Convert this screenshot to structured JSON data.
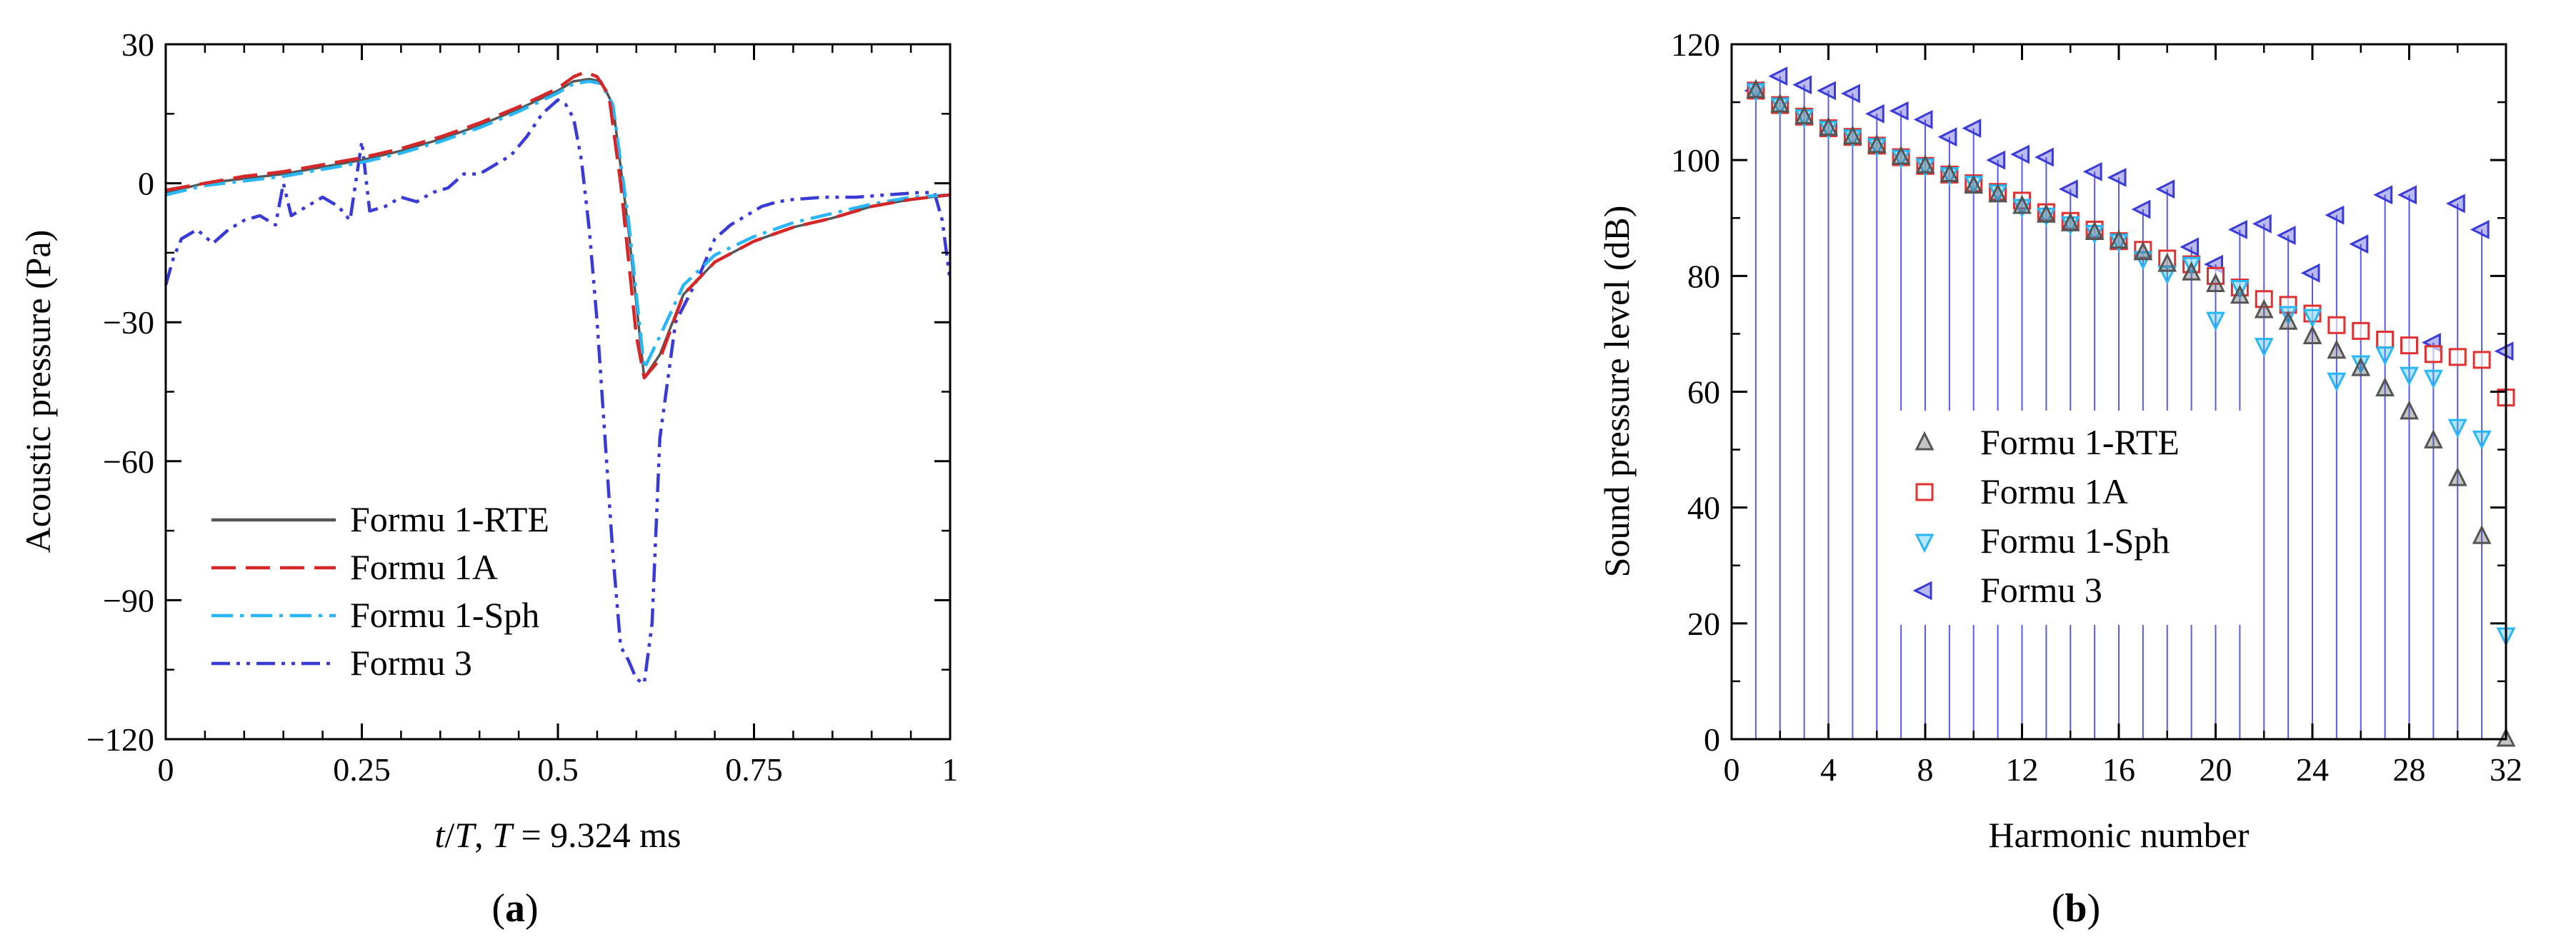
{
  "chart_data": [
    {
      "type": "line",
      "panel_label": {
        "open": "(",
        "letter": "a",
        "close": ")"
      },
      "xlabel": {
        "t": "t",
        "mid": "/",
        "T": "T",
        "rest": ", ",
        "T2": "T",
        "value": " = 9.324 ms"
      },
      "ylabel": "Acoustic pressure (Pa)",
      "xlim": [
        0,
        1
      ],
      "ylim": [
        -120,
        30
      ],
      "xticks": [
        0,
        0.25,
        0.5,
        0.75,
        1
      ],
      "xtick_labels": [
        "0",
        "0.25",
        "0.5",
        "0.75",
        "1"
      ],
      "yticks": [
        -120,
        -90,
        -60,
        -30,
        0,
        30
      ],
      "ytick_labels": [
        "−120",
        "−90",
        "−60",
        "−30",
        "0",
        "30"
      ],
      "grid": false,
      "legend_position": "lower-left",
      "series": [
        {
          "name": "Formu 1-RTE",
          "color": "#555555",
          "style": "solid",
          "x": [
            0,
            0.05,
            0.1,
            0.15,
            0.2,
            0.25,
            0.3,
            0.35,
            0.4,
            0.45,
            0.5,
            0.52,
            0.54,
            0.555,
            0.57,
            0.59,
            0.61,
            0.63,
            0.66,
            0.7,
            0.75,
            0.8,
            0.85,
            0.9,
            0.95,
            1.0
          ],
          "y": [
            -2,
            0,
            1,
            2,
            3.5,
            5,
            7,
            9.5,
            12.5,
            16,
            20,
            22,
            22.5,
            22,
            17,
            -10,
            -42,
            -37,
            -24,
            -17,
            -12.5,
            -9.5,
            -7.5,
            -5,
            -3.5,
            -2.5
          ]
        },
        {
          "name": "Formu 1A",
          "color": "#d62728",
          "style": "dashed",
          "x": [
            0,
            0.05,
            0.1,
            0.15,
            0.2,
            0.25,
            0.3,
            0.35,
            0.4,
            0.45,
            0.5,
            0.52,
            0.535,
            0.55,
            0.565,
            0.58,
            0.6,
            0.61,
            0.63,
            0.66,
            0.7,
            0.75,
            0.8,
            0.85,
            0.9,
            0.95,
            1.0
          ],
          "y": [
            -1.5,
            0,
            1.5,
            2.5,
            4,
            5.5,
            7.5,
            10,
            13,
            16.5,
            20.5,
            23,
            24,
            23,
            19,
            0,
            -33,
            -42,
            -38,
            -24,
            -17,
            -12.5,
            -9.5,
            -7.5,
            -5,
            -3.5,
            -2.5
          ]
        },
        {
          "name": "Formu 1-Sph",
          "color": "#29b6f6",
          "style": "dashdot",
          "x": [
            0,
            0.05,
            0.1,
            0.15,
            0.2,
            0.25,
            0.3,
            0.35,
            0.4,
            0.45,
            0.5,
            0.52,
            0.54,
            0.555,
            0.57,
            0.59,
            0.61,
            0.63,
            0.66,
            0.7,
            0.75,
            0.8,
            0.85,
            0.9,
            0.95,
            1.0
          ],
          "y": [
            -2.5,
            -0.5,
            0.5,
            1.5,
            3,
            4.5,
            6.5,
            9,
            12,
            15.5,
            19.5,
            21.5,
            22,
            21.5,
            17,
            -8,
            -40,
            -33,
            -22,
            -15.5,
            -11.5,
            -8.5,
            -6.5,
            -4.5,
            -3,
            -2.5
          ]
        },
        {
          "name": "Formu 3",
          "color": "#3a3ad6",
          "style": "dashdotdot",
          "x": [
            0,
            0.01,
            0.02,
            0.04,
            0.06,
            0.08,
            0.1,
            0.12,
            0.14,
            0.15,
            0.16,
            0.18,
            0.2,
            0.22,
            0.235,
            0.25,
            0.26,
            0.28,
            0.3,
            0.32,
            0.34,
            0.36,
            0.38,
            0.4,
            0.42,
            0.44,
            0.46,
            0.48,
            0.5,
            0.51,
            0.52,
            0.53,
            0.54,
            0.55,
            0.56,
            0.57,
            0.58,
            0.59,
            0.6,
            0.61,
            0.62,
            0.63,
            0.65,
            0.68,
            0.7,
            0.72,
            0.74,
            0.76,
            0.78,
            0.8,
            0.84,
            0.88,
            0.92,
            0.96,
            0.98,
            0.99,
            1.0
          ],
          "y": [
            -22,
            -16,
            -12,
            -10,
            -13,
            -10,
            -8,
            -7,
            -9,
            0,
            -7,
            -5,
            -3,
            -5,
            -8,
            9,
            -6,
            -5,
            -3,
            -4,
            -2,
            -1,
            2,
            2,
            4,
            6,
            10,
            15,
            18,
            17,
            14,
            5,
            -10,
            -30,
            -55,
            -80,
            -100,
            -103,
            -107,
            -108,
            -95,
            -55,
            -30,
            -20,
            -12,
            -9,
            -7,
            -5,
            -4,
            -3.5,
            -3,
            -3,
            -2.5,
            -2,
            -2,
            -8,
            -21
          ]
        }
      ]
    },
    {
      "type": "scatter",
      "panel_label": {
        "open": "(",
        "letter": "b",
        "close": ")"
      },
      "xlabel": "Harmonic number",
      "ylabel": "Sound pressure level (dB)",
      "xlim": [
        0,
        32
      ],
      "ylim": [
        0,
        120
      ],
      "xticks": [
        0,
        4,
        8,
        12,
        16,
        20,
        24,
        28,
        32
      ],
      "xtick_labels": [
        "0",
        "4",
        "8",
        "12",
        "16",
        "20",
        "24",
        "28",
        "32"
      ],
      "yticks": [
        0,
        20,
        40,
        60,
        80,
        100,
        120
      ],
      "ytick_labels": [
        "0",
        "20",
        "40",
        "60",
        "80",
        "100",
        "120"
      ],
      "grid": false,
      "legend_position": "center-left",
      "stems": {
        "color": "#5a5af0",
        "series": "Formu 3"
      },
      "harmonics": [
        1,
        2,
        3,
        4,
        5,
        6,
        7,
        8,
        9,
        10,
        11,
        12,
        13,
        14,
        15,
        16,
        17,
        18,
        19,
        20,
        21,
        22,
        23,
        24,
        25,
        26,
        27,
        28,
        29,
        30,
        31,
        32
      ],
      "series": [
        {
          "name": "Formu 1-RTE",
          "marker": "triangle-up",
          "color": "#555555",
          "values": [
            112,
            109.5,
            107.5,
            105.5,
            104,
            102.5,
            100.5,
            99,
            97.5,
            95.5,
            94,
            92,
            90.5,
            89,
            87.5,
            86,
            84,
            82,
            80.5,
            78.5,
            76.5,
            74,
            72,
            69.5,
            67,
            64,
            60.5,
            56.5,
            51.5,
            45,
            35,
            0
          ]
        },
        {
          "name": "Formu 1A",
          "marker": "square",
          "color": "#e03030",
          "values": [
            112,
            109.5,
            107.5,
            105.5,
            104,
            102.5,
            100.5,
            99,
            97.5,
            96,
            94.5,
            93,
            91,
            89.5,
            88,
            86,
            84.5,
            83,
            82,
            80,
            78,
            76,
            75,
            73.5,
            71.5,
            70.5,
            69,
            68,
            66.5,
            66,
            65.5,
            59
          ]
        },
        {
          "name": "Formu 1-Sph",
          "marker": "triangle-down",
          "color": "#29b6f6",
          "values": [
            112,
            109.5,
            107.5,
            105.5,
            104,
            102.5,
            100.5,
            99,
            97.5,
            96,
            94.5,
            92,
            90.5,
            89,
            87.5,
            86,
            83,
            80.5,
            82,
            72.5,
            78,
            68,
            73.5,
            73,
            62,
            65,
            66.5,
            63,
            62.5,
            54,
            52,
            18
          ]
        },
        {
          "name": "Formu 3",
          "marker": "triangle-left",
          "color": "#3a3ad6",
          "values": [
            112,
            114.5,
            113,
            112,
            111.5,
            108,
            108.5,
            107,
            104,
            105.5,
            100,
            101,
            100.5,
            95,
            98,
            97,
            91.5,
            95,
            85,
            82,
            88,
            89,
            87,
            80.5,
            90.5,
            85.5,
            94,
            94,
            68.5,
            92.5,
            88,
            67
          ]
        }
      ]
    }
  ]
}
